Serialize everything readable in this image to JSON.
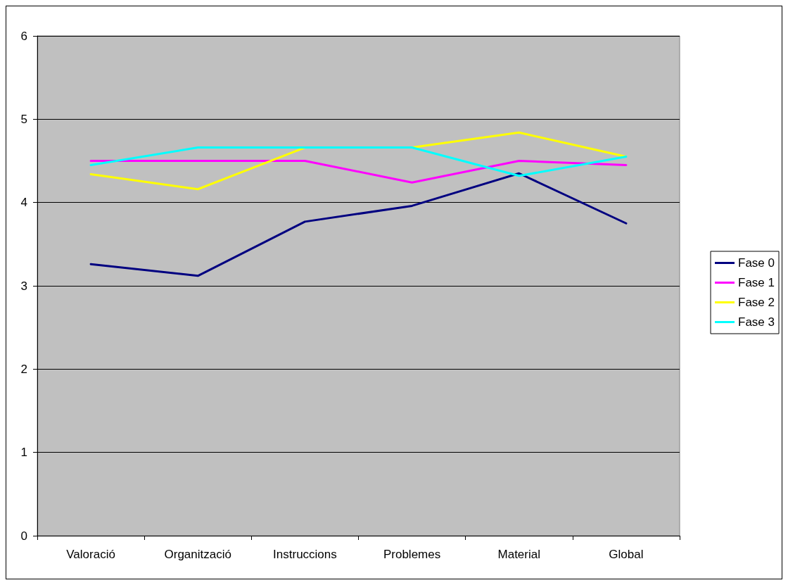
{
  "chart_data": {
    "type": "line",
    "categories": [
      "Valoració",
      "Organització",
      "Instruccions",
      "Problemes",
      "Material",
      "Global"
    ],
    "series": [
      {
        "name": "Fase 0",
        "color": "#000080",
        "values": [
          3.26,
          3.12,
          3.77,
          3.96,
          4.35,
          3.75
        ]
      },
      {
        "name": "Fase 1",
        "color": "#ff00ff",
        "values": [
          4.5,
          4.5,
          4.5,
          4.24,
          4.5,
          4.45
        ]
      },
      {
        "name": "Fase 2",
        "color": "#ffff00",
        "values": [
          4.34,
          4.16,
          4.66,
          4.66,
          4.84,
          4.55
        ]
      },
      {
        "name": "Fase 3",
        "color": "#00ffff",
        "values": [
          4.45,
          4.66,
          4.66,
          4.66,
          4.32,
          4.55
        ]
      }
    ],
    "ylim": [
      0,
      6
    ],
    "yticks": [
      0,
      1,
      2,
      3,
      4,
      5,
      6
    ],
    "grid": "y",
    "legend": "right",
    "marker": "none",
    "line_style": "solid"
  }
}
